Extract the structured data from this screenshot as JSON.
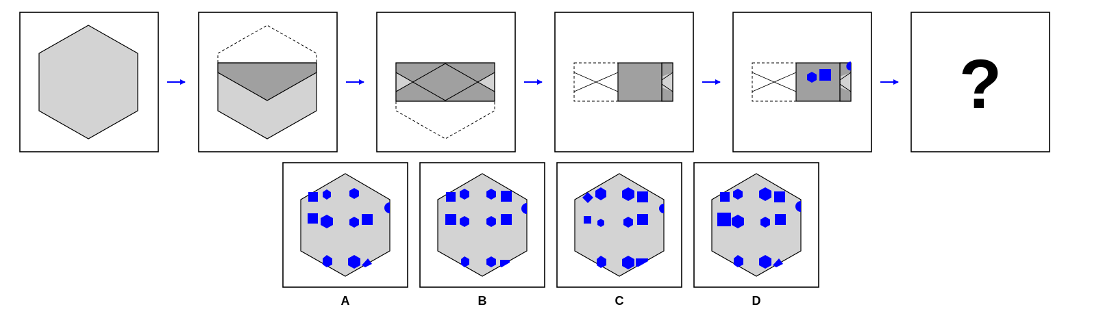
{
  "puzzle": {
    "question_mark": "?",
    "option_labels": [
      "A",
      "B",
      "C",
      "D"
    ]
  },
  "colors": {
    "hexagon_fill": "#d3d3d3",
    "folded_fill": "#a0a0a0",
    "cut_shape": "#0000ff",
    "arrow": "#0000ff",
    "outline": "#000000",
    "background": "#ffffff"
  },
  "steps": [
    {
      "name": "step-1-hexagon"
    },
    {
      "name": "step-2-fold-top-down"
    },
    {
      "name": "step-3-fold-bottom-up"
    },
    {
      "name": "step-4-fold-left-over"
    },
    {
      "name": "step-5-punch-holes"
    },
    {
      "name": "step-6-unknown"
    }
  ],
  "options": [
    {
      "label": "A"
    },
    {
      "label": "B"
    },
    {
      "label": "C"
    },
    {
      "label": "D"
    }
  ]
}
